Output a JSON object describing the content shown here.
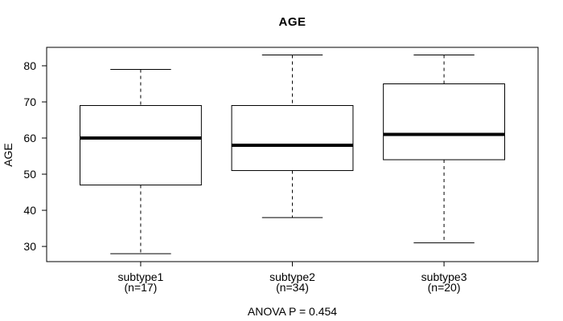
{
  "chart_data": {
    "type": "boxplot",
    "title": "AGE",
    "ylabel": "AGE",
    "footer": "ANOVA P = 0.454",
    "categories": [
      "subtype1",
      "subtype2",
      "subtype3"
    ],
    "category_sublabels": [
      "(n=17)",
      "(n=34)",
      "(n=20)"
    ],
    "yticks": [
      30,
      40,
      50,
      60,
      70,
      80
    ],
    "ylim": [
      25.8,
      85.1
    ],
    "xlim": [
      0.38,
      3.62
    ],
    "box_width": 0.8,
    "cap_width": 0.4,
    "median_line_width": 4,
    "whisker_dash": "4,4",
    "grid": false,
    "legend": "none",
    "series": [
      {
        "name": "subtype1",
        "n": 17,
        "position": 1,
        "whisker_low": 28,
        "q1": 47,
        "median": 60,
        "q3": 69,
        "whisker_high": 79
      },
      {
        "name": "subtype2",
        "n": 34,
        "position": 2,
        "whisker_low": 38,
        "q1": 51,
        "median": 58,
        "q3": 69,
        "whisker_high": 83
      },
      {
        "name": "subtype3",
        "n": 20,
        "position": 3,
        "whisker_low": 31,
        "q1": 54,
        "median": 61,
        "q3": 75,
        "whisker_high": 83
      }
    ],
    "colors": {
      "line": "#000000",
      "box_fill": "#ffffff",
      "background": "#ffffff"
    }
  }
}
